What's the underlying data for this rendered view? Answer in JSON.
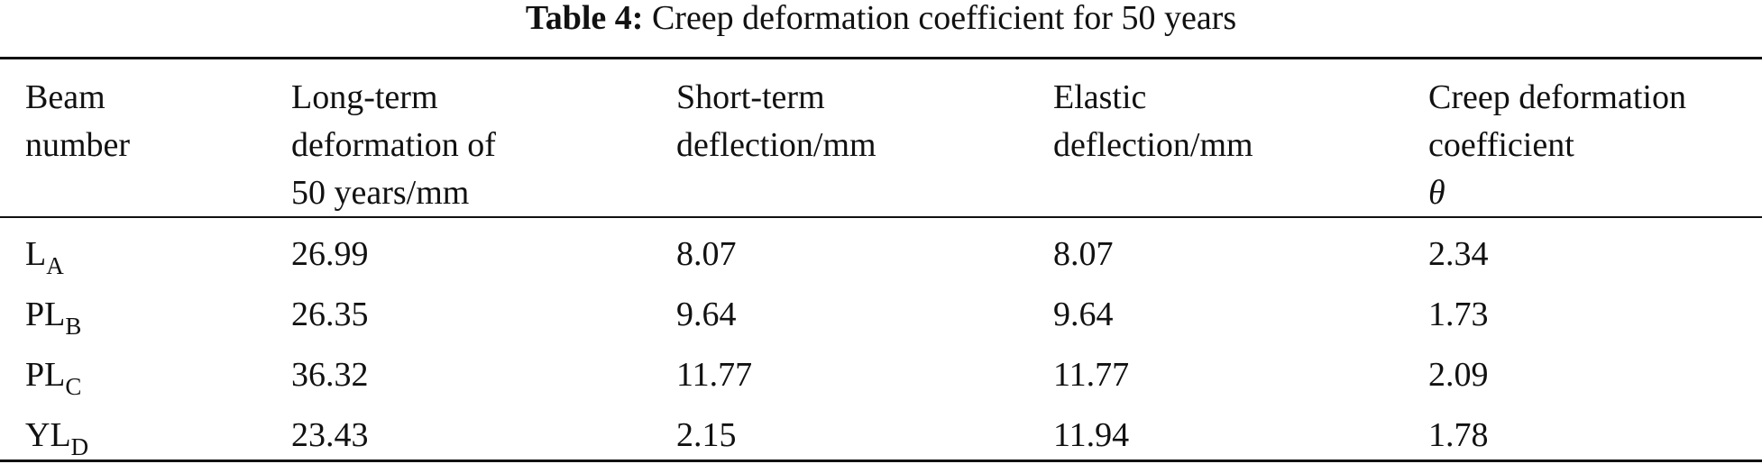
{
  "caption": {
    "label": "Table 4:",
    "text": "Creep deformation coefficient for 50 years"
  },
  "table": {
    "headers": [
      {
        "lines": [
          "Beam",
          "number"
        ]
      },
      {
        "lines": [
          "Long-term",
          "deformation of",
          "50 years/mm"
        ]
      },
      {
        "lines": [
          "Short-term",
          "deflection/mm"
        ]
      },
      {
        "lines": [
          "Elastic",
          "deflection/mm"
        ]
      },
      {
        "lines": [
          "Creep deformation",
          "coefficient"
        ],
        "symbol": "θ"
      }
    ],
    "rows": [
      {
        "beam": {
          "base": "L",
          "sub": "A"
        },
        "long_term": "26.99",
        "short_term": "8.07",
        "elastic": "8.07",
        "creep_coefficient": "2.34"
      },
      {
        "beam": {
          "base": "PL",
          "sub": "B"
        },
        "long_term": "26.35",
        "short_term": "9.64",
        "elastic": "9.64",
        "creep_coefficient": "1.73"
      },
      {
        "beam": {
          "base": "PL",
          "sub": "C"
        },
        "long_term": "36.32",
        "short_term": "11.77",
        "elastic": "11.77",
        "creep_coefficient": "2.09"
      },
      {
        "beam": {
          "base": "YL",
          "sub": "D"
        },
        "long_term": "23.43",
        "short_term": "2.15",
        "elastic": "11.94",
        "creep_coefficient": "1.78"
      }
    ]
  }
}
